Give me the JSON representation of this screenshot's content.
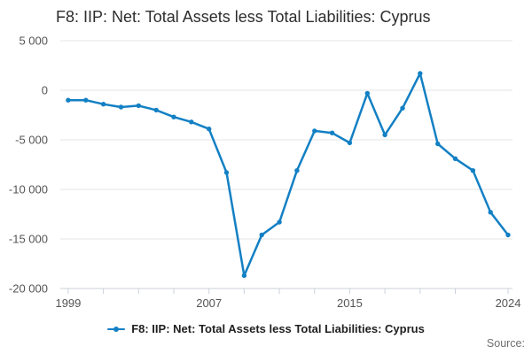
{
  "title": "F8: IIP: Net: Total Assets less Total Liabilities: Cyprus",
  "legend": {
    "label": "F8: IIP: Net: Total Assets less Total Liabilities: Cyprus"
  },
  "source_label": "Source:",
  "colors": {
    "line": "#1380C4",
    "grid": "#e6e6e6",
    "axis": "#ccd1da",
    "tick_text": "#545454",
    "title_text": "#2d2d2d"
  },
  "chart_data": {
    "type": "line",
    "title": "F8: IIP: Net: Total Assets less Total Liabilities: Cyprus",
    "xlabel": "",
    "ylabel": "",
    "x": [
      1999,
      2000,
      2001,
      2002,
      2003,
      2004,
      2005,
      2006,
      2007,
      2008,
      2009,
      2010,
      2011,
      2012,
      2013,
      2014,
      2015,
      2016,
      2017,
      2018,
      2019,
      2020,
      2021,
      2022,
      2023,
      2024
    ],
    "series": [
      {
        "name": "F8: IIP: Net: Total Assets less Total Liabilities: Cyprus",
        "values": [
          -1000,
          -1000,
          -1400,
          -1700,
          -1550,
          -2000,
          -2700,
          -3200,
          -3900,
          -8300,
          -18700,
          -14600,
          -13300,
          -8100,
          -4100,
          -4300,
          -5300,
          -300,
          -4500,
          -1800,
          1700,
          -5400,
          -6900,
          -8100,
          -12300,
          -14600
        ]
      }
    ],
    "ylim": [
      -20000,
      5000
    ],
    "xlim": [
      1998.55,
      2024.25
    ],
    "yticks": [
      5000,
      0,
      -5000,
      -10000,
      -15000,
      -20000
    ],
    "ytick_labels": [
      "5 000",
      "0",
      "-5 000",
      "-10 000",
      "-15 000",
      "-20 000"
    ],
    "xticks": [
      1999,
      2001,
      2003,
      2005,
      2007,
      2009,
      2011,
      2013,
      2015,
      2017,
      2019,
      2021,
      2024
    ],
    "xtick_labels_shown": [
      "1999",
      "2007",
      "2015",
      "2024"
    ],
    "xlabel_years": [
      1999,
      2007,
      2015,
      2024
    ],
    "grid": true,
    "legend_position": "bottom"
  }
}
